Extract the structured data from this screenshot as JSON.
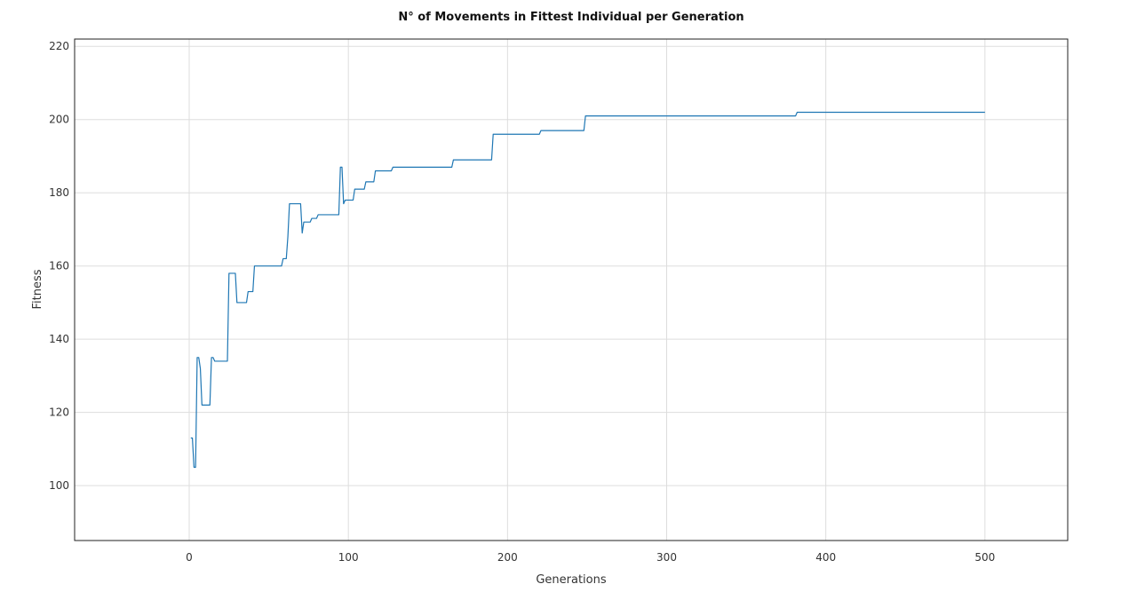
{
  "chart_data": {
    "type": "line",
    "title": "N° of Movements in Fittest Individual per Generation",
    "xlabel": "Generations",
    "ylabel": "Fitness",
    "xlim": [
      -72,
      552
    ],
    "ylim": [
      85,
      222
    ],
    "xticks": [
      0,
      100,
      200,
      300,
      400,
      500
    ],
    "yticks": [
      100,
      120,
      140,
      160,
      180,
      200,
      220
    ],
    "grid": true,
    "legend": "none",
    "colors": {
      "line": "#1f77b4",
      "grid": "#dddddd",
      "frame": "#222222"
    },
    "series": [
      {
        "x": [
          1,
          2,
          3,
          4,
          5,
          6,
          7,
          8,
          9,
          13,
          14,
          15,
          16,
          17,
          24,
          25,
          29,
          30,
          36,
          37,
          40,
          41,
          58,
          59,
          61,
          62,
          63,
          64,
          65,
          70,
          71,
          72,
          73,
          76,
          77,
          80,
          81,
          94,
          95,
          96,
          97,
          98,
          100,
          101,
          102,
          103,
          104,
          107,
          108,
          110,
          111,
          116,
          117,
          122,
          123,
          127,
          128,
          165,
          166,
          190,
          191,
          220,
          221,
          248,
          249,
          381,
          382,
          500
        ],
        "y": [
          113,
          113,
          105,
          105,
          135,
          135,
          132,
          122,
          122,
          122,
          135,
          135,
          134,
          134,
          134,
          158,
          158,
          150,
          150,
          153,
          153,
          160,
          160,
          162,
          162,
          168,
          177,
          177,
          177,
          177,
          169,
          172,
          172,
          172,
          173,
          173,
          174,
          174,
          187,
          187,
          177,
          178,
          178,
          178,
          178,
          178,
          181,
          181,
          181,
          181,
          183,
          183,
          186,
          186,
          186,
          186,
          187,
          187,
          189,
          189,
          196,
          196,
          197,
          197,
          201,
          201,
          202,
          202
        ]
      }
    ]
  }
}
